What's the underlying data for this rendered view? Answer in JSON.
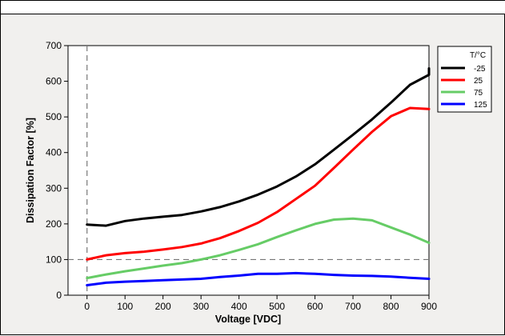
{
  "chart_data": {
    "type": "line",
    "xlabel": "Voltage [VDC]",
    "ylabel": "Dissipation Factor [%]",
    "xlim": [
      -50,
      900
    ],
    "ylim": [
      0,
      700
    ],
    "xticks": [
      0,
      100,
      200,
      300,
      400,
      500,
      600,
      700,
      800,
      900
    ],
    "yticks": [
      0,
      100,
      200,
      300,
      400,
      500,
      600,
      700
    ],
    "reference_lines": {
      "x": 0,
      "y": 100,
      "style": "dashed"
    },
    "legend_title": "T/°C",
    "legend_position": "top-right",
    "grid": false,
    "series": [
      {
        "name": "-25",
        "color": "#000000",
        "x": [
          0,
          50,
          100,
          150,
          200,
          250,
          300,
          350,
          400,
          450,
          500,
          550,
          600,
          650,
          700,
          750,
          800,
          850,
          900,
          930
        ],
        "y": [
          198,
          195,
          208,
          215,
          220,
          225,
          235,
          247,
          263,
          282,
          305,
          333,
          367,
          408,
          450,
          493,
          540,
          590,
          618,
          636
        ]
      },
      {
        "name": "25",
        "color": "#ff0000",
        "x": [
          0,
          50,
          100,
          150,
          200,
          250,
          300,
          350,
          400,
          450,
          500,
          550,
          600,
          650,
          700,
          750,
          800,
          850,
          900
        ],
        "y": [
          100,
          112,
          118,
          122,
          128,
          135,
          145,
          160,
          180,
          203,
          233,
          270,
          307,
          357,
          408,
          458,
          502,
          525,
          522
        ]
      },
      {
        "name": "75",
        "color": "#66cc66",
        "x": [
          0,
          50,
          100,
          150,
          200,
          250,
          300,
          350,
          400,
          450,
          500,
          550,
          600,
          650,
          700,
          750,
          800,
          850,
          900
        ],
        "y": [
          48,
          58,
          67,
          75,
          83,
          90,
          100,
          112,
          127,
          143,
          163,
          182,
          200,
          212,
          215,
          210,
          190,
          170,
          147
        ]
      },
      {
        "name": "125",
        "color": "#0000ff",
        "x": [
          0,
          50,
          100,
          150,
          200,
          250,
          300,
          350,
          400,
          450,
          500,
          550,
          600,
          650,
          700,
          750,
          800,
          850,
          900
        ],
        "y": [
          28,
          35,
          38,
          40,
          42,
          44,
          46,
          51,
          55,
          60,
          60,
          62,
          60,
          57,
          55,
          54,
          52,
          49,
          46
        ]
      }
    ]
  }
}
